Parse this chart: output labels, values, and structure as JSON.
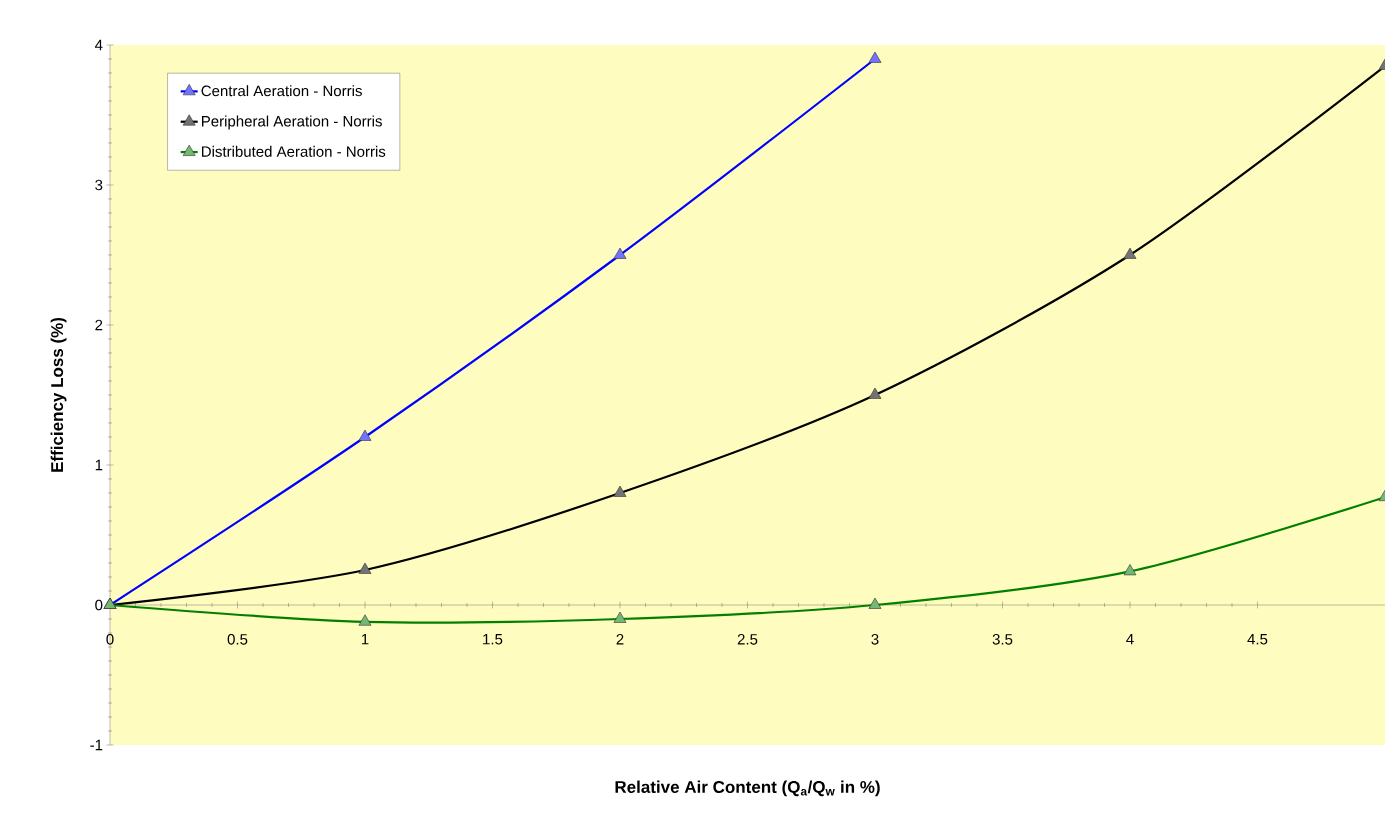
{
  "chart_data": {
    "type": "line",
    "xlabel": "Relative Air Content (Q$_{a}$/Q$_{w}$ in %)",
    "ylabel": "Efficiency Loss (%)",
    "x": [
      0,
      1,
      2,
      3,
      4,
      5
    ],
    "series": [
      {
        "name": "Central Aeration - Norris",
        "color": "#0000ff",
        "x": [
          0,
          1,
          2,
          3
        ],
        "values": [
          0,
          1.2,
          2.5,
          3.9
        ]
      },
      {
        "name": "Peripheral Aeration - Norris",
        "color": "#000000",
        "values": [
          0,
          0.25,
          0.8,
          1.5,
          2.5,
          3.85
        ]
      },
      {
        "name": "Distributed Aeration - Norris",
        "color": "#008000",
        "values": [
          0,
          -0.12,
          -0.1,
          0,
          0.24,
          0.77
        ]
      }
    ],
    "xlim": [
      0,
      5
    ],
    "ylim": [
      -1,
      4
    ],
    "xticks": [
      0,
      0.5,
      1,
      1.5,
      2,
      2.5,
      3,
      3.5,
      4,
      4.5
    ],
    "yticks": [
      -1,
      0,
      1,
      2,
      3,
      4
    ],
    "grid": false,
    "legend": "top left",
    "marker": "triangle",
    "line_style": "solid"
  }
}
